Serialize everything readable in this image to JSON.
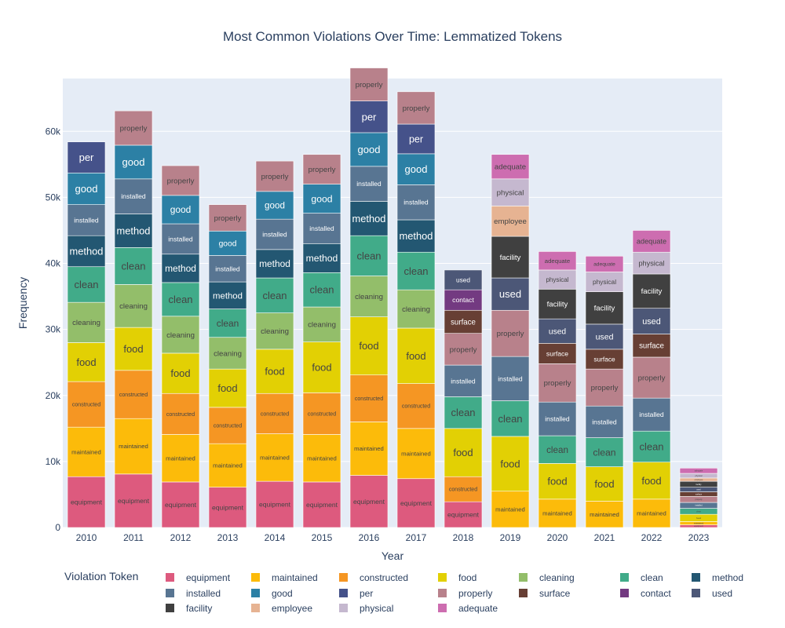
{
  "chart_data": {
    "type": "bar",
    "stacked": true,
    "title": "Most Common Violations Over Time: Lemmatized Tokens",
    "xlabel": "Year",
    "ylabel": "Frequency",
    "ylim": [
      0,
      68000
    ],
    "yticks": [
      0,
      10000,
      20000,
      30000,
      40000,
      50000,
      60000
    ],
    "ytick_labels": [
      "0",
      "10k",
      "20k",
      "30k",
      "40k",
      "50k",
      "60k"
    ],
    "grid": true,
    "legend_title": "Violation Token",
    "legend_position": "bottom",
    "categories": [
      "2010",
      "2011",
      "2012",
      "2013",
      "2014",
      "2015",
      "2016",
      "2017",
      "2018",
      "2019",
      "2020",
      "2021",
      "2022",
      "2023"
    ],
    "series": [
      {
        "name": "equipment",
        "color": "#dd5a7e",
        "values": [
          7700,
          8100,
          6900,
          6100,
          7000,
          6900,
          7900,
          7400,
          3900,
          0,
          0,
          0,
          0,
          400
        ]
      },
      {
        "name": "maintained",
        "color": "#fcbb0a",
        "values": [
          7500,
          8400,
          7200,
          6600,
          7200,
          7200,
          8100,
          7600,
          0,
          5500,
          4300,
          4000,
          4300,
          500
        ]
      },
      {
        "name": "constructed",
        "color": "#f59623",
        "values": [
          6900,
          7300,
          6200,
          5500,
          6100,
          6300,
          7100,
          6800,
          3800,
          0,
          0,
          0,
          0,
          0
        ]
      },
      {
        "name": "food",
        "color": "#e2d004",
        "values": [
          5900,
          6500,
          6100,
          5800,
          6700,
          7700,
          8800,
          8400,
          7300,
          8300,
          5400,
          5200,
          5600,
          1100
        ]
      },
      {
        "name": "cleaning",
        "color": "#93be6a",
        "values": [
          6100,
          6500,
          5600,
          4800,
          5500,
          5300,
          6200,
          5800,
          0,
          0,
          0,
          0,
          0,
          0
        ]
      },
      {
        "name": "clean",
        "color": "#41ab89",
        "values": [
          5400,
          5600,
          5100,
          4300,
          5300,
          5200,
          6100,
          5700,
          4800,
          5400,
          4200,
          4400,
          4700,
          900
        ]
      },
      {
        "name": "method",
        "color": "#235772",
        "values": [
          4700,
          5100,
          4300,
          4100,
          4300,
          4400,
          5200,
          4900,
          0,
          0,
          0,
          0,
          0,
          0
        ]
      },
      {
        "name": "installed",
        "color": "#587592",
        "values": [
          4700,
          5300,
          4600,
          4000,
          4600,
          4600,
          5300,
          5300,
          4800,
          6700,
          5100,
          4800,
          5000,
          900
        ]
      },
      {
        "name": "good",
        "color": "#2c80a5",
        "values": [
          4800,
          5100,
          4300,
          3700,
          4200,
          4400,
          5100,
          4700,
          0,
          0,
          0,
          0,
          0,
          0
        ]
      },
      {
        "name": "per",
        "color": "#45528a",
        "values": [
          4700,
          0,
          0,
          0,
          0,
          0,
          4800,
          4500,
          0,
          0,
          0,
          0,
          0,
          0
        ]
      },
      {
        "name": "properly",
        "color": "#b8818b",
        "values": [
          0,
          5200,
          4500,
          4000,
          4600,
          4500,
          5000,
          4900,
          4800,
          7000,
          5800,
          5600,
          6200,
          900
        ]
      },
      {
        "name": "surface",
        "color": "#673f34",
        "values": [
          0,
          0,
          0,
          0,
          0,
          0,
          0,
          0,
          3500,
          0,
          3100,
          3000,
          3500,
          700
        ]
      },
      {
        "name": "contact",
        "color": "#733a81",
        "values": [
          0,
          0,
          0,
          0,
          0,
          0,
          0,
          0,
          3100,
          0,
          0,
          0,
          0,
          0
        ]
      },
      {
        "name": "used",
        "color": "#4c5777",
        "values": [
          0,
          0,
          0,
          0,
          0,
          0,
          0,
          0,
          3000,
          4900,
          3700,
          3800,
          3900,
          700
        ]
      },
      {
        "name": "facility",
        "color": "#404040",
        "values": [
          0,
          0,
          0,
          0,
          0,
          0,
          0,
          0,
          0,
          6300,
          4500,
          4900,
          5200,
          900
        ]
      },
      {
        "name": "employee",
        "color": "#e6b392",
        "values": [
          0,
          0,
          0,
          0,
          0,
          0,
          0,
          0,
          0,
          4600,
          0,
          0,
          0,
          500
        ]
      },
      {
        "name": "physical",
        "color": "#c5b8cf",
        "values": [
          0,
          0,
          0,
          0,
          0,
          0,
          0,
          0,
          0,
          4100,
          2900,
          3000,
          3300,
          700
        ]
      },
      {
        "name": "adequate",
        "color": "#cd6db0",
        "values": [
          0,
          0,
          0,
          0,
          0,
          0,
          0,
          0,
          0,
          3700,
          2800,
          2400,
          3300,
          800
        ]
      }
    ]
  }
}
